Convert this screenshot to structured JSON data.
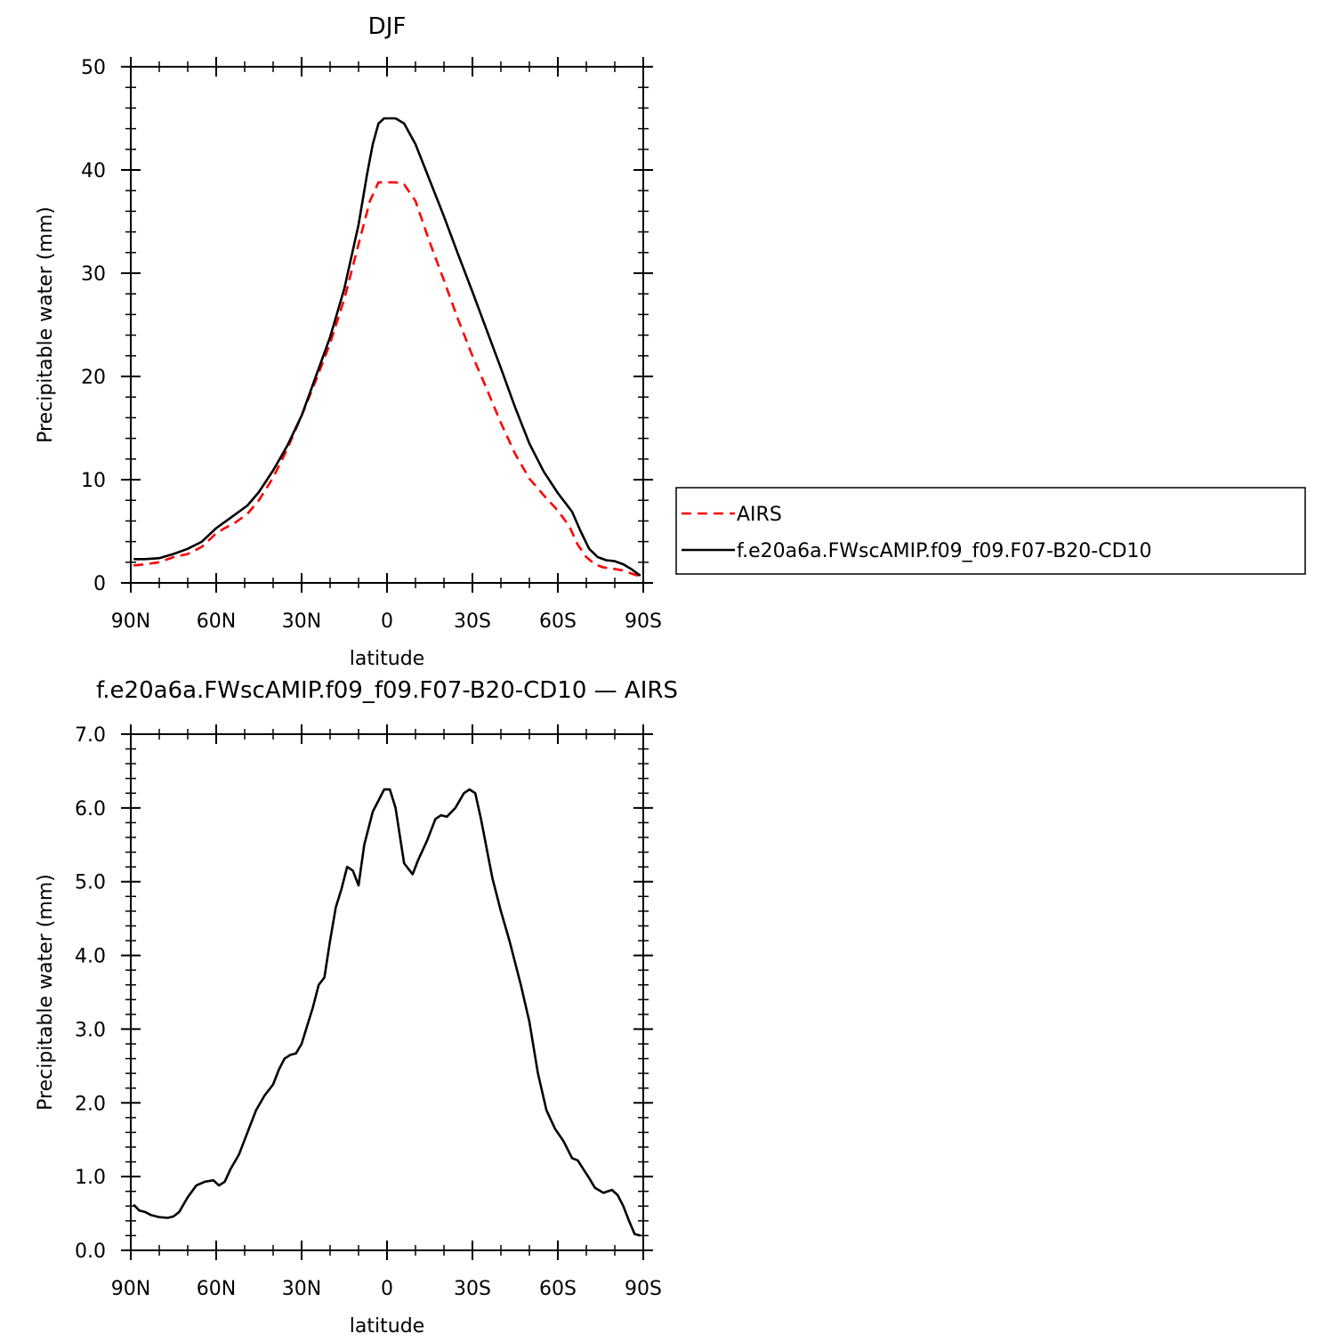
{
  "chart_data": [
    {
      "type": "line",
      "title": "DJF",
      "xlabel": "latitude",
      "ylabel": "Precipitable water (mm)",
      "xlim": [
        90,
        -90
      ],
      "ylim": [
        0,
        50
      ],
      "x_ticks": [
        90,
        60,
        30,
        0,
        -30,
        -60,
        -90
      ],
      "x_tick_labels": [
        "90N",
        "60N",
        "30N",
        "0",
        "30S",
        "60S",
        "90S"
      ],
      "y_ticks": [
        0,
        10,
        20,
        30,
        40,
        50
      ],
      "y_tick_labels": [
        "0",
        "10",
        "20",
        "30",
        "40",
        "50"
      ],
      "legend_position": "right",
      "series": [
        {
          "name": "AIRS",
          "color": "#ff0000",
          "dash": "dashed",
          "x": [
            89,
            85,
            80,
            75,
            70,
            65,
            60,
            57,
            53,
            49,
            45,
            40,
            35,
            30,
            25,
            20,
            15,
            10,
            6,
            3,
            1,
            -1,
            -3,
            -6,
            -10,
            -15,
            -20,
            -25,
            -30,
            -35,
            -40,
            -45,
            -50,
            -55,
            -60,
            -64,
            -67,
            -70,
            -73,
            -76,
            -79,
            -83,
            -86,
            -89
          ],
          "y": [
            1.7,
            1.8,
            2.0,
            2.5,
            2.8,
            3.5,
            4.8,
            5.3,
            5.9,
            6.7,
            8.0,
            10.2,
            13.0,
            16.2,
            19.6,
            23.2,
            27.5,
            32.8,
            37.0,
            38.8,
            38.8,
            38.8,
            38.8,
            38.6,
            37.0,
            33.0,
            29.3,
            25.5,
            22.0,
            18.8,
            15.5,
            12.5,
            10.1,
            8.5,
            7.0,
            5.5,
            3.7,
            2.5,
            1.8,
            1.5,
            1.4,
            1.2,
            0.9,
            0.6
          ]
        },
        {
          "name": "f.e20a6a.FWscAMIP.f09_f09.F07-B20-CD10",
          "color": "#000000",
          "dash": "solid",
          "x": [
            89,
            85,
            80,
            75,
            70,
            65,
            60,
            57,
            53,
            49,
            45,
            40,
            35,
            30,
            25,
            20,
            15,
            10,
            7,
            5,
            3,
            1,
            -1,
            -3,
            -6,
            -10,
            -15,
            -20,
            -25,
            -30,
            -35,
            -40,
            -45,
            -50,
            -55,
            -60,
            -65,
            -68,
            -71,
            -74,
            -77,
            -80,
            -83,
            -86,
            -89
          ],
          "y": [
            2.3,
            2.3,
            2.4,
            2.8,
            3.3,
            4.0,
            5.3,
            5.9,
            6.7,
            7.5,
            8.8,
            10.9,
            13.3,
            16.2,
            20.0,
            23.8,
            28.5,
            34.7,
            39.6,
            42.5,
            44.5,
            45.0,
            45.0,
            45.0,
            44.5,
            42.5,
            39.0,
            35.5,
            31.8,
            28.2,
            24.5,
            20.8,
            17.0,
            13.5,
            10.8,
            8.7,
            6.9,
            5.0,
            3.3,
            2.5,
            2.2,
            2.1,
            1.8,
            1.3,
            0.7
          ]
        }
      ]
    },
    {
      "type": "line",
      "title": "f.e20a6a.FWscAMIP.f09_f09.F07-B20-CD10 — AIRS",
      "xlabel": "latitude",
      "ylabel": "Precipitable water (mm)",
      "xlim": [
        90,
        -90
      ],
      "ylim": [
        0,
        7
      ],
      "x_ticks": [
        90,
        60,
        30,
        0,
        -30,
        -60,
        -90
      ],
      "x_tick_labels": [
        "90N",
        "60N",
        "30N",
        "0",
        "30S",
        "60S",
        "90S"
      ],
      "y_ticks": [
        0,
        1,
        2,
        3,
        4,
        5,
        6,
        7
      ],
      "y_tick_labels": [
        "0.0",
        "1.0",
        "2.0",
        "3.0",
        "4.0",
        "5.0",
        "6.0",
        "7.0"
      ],
      "series": [
        {
          "color": "#000000",
          "dash": "solid",
          "x": [
            89,
            87,
            85,
            83,
            80,
            77,
            75,
            73,
            70,
            67,
            64,
            61,
            59,
            57,
            55,
            52,
            49,
            46,
            43,
            40,
            38,
            36,
            34,
            32,
            30,
            28,
            26,
            24,
            22,
            20,
            18,
            16,
            14,
            12,
            10,
            8,
            5,
            3,
            1,
            -1,
            -3,
            -6,
            -9,
            -11,
            -14,
            -17,
            -19,
            -21,
            -24,
            -27,
            -29,
            -31,
            -33,
            -37,
            -40,
            -43,
            -47,
            -50,
            -53,
            -56,
            -59,
            -62,
            -65,
            -67,
            -69,
            -71,
            -73,
            -76,
            -79,
            -81,
            -83,
            -85,
            -87,
            -89
          ],
          "y": [
            0.62,
            0.54,
            0.52,
            0.48,
            0.45,
            0.44,
            0.46,
            0.52,
            0.72,
            0.88,
            0.93,
            0.95,
            0.88,
            0.93,
            1.1,
            1.3,
            1.6,
            1.9,
            2.1,
            2.25,
            2.45,
            2.6,
            2.65,
            2.67,
            2.8,
            3.05,
            3.3,
            3.6,
            3.7,
            4.2,
            4.65,
            4.9,
            5.2,
            5.15,
            4.95,
            5.5,
            5.95,
            6.1,
            6.25,
            6.25,
            6.0,
            5.25,
            5.1,
            5.3,
            5.55,
            5.85,
            5.9,
            5.88,
            6.0,
            6.2,
            6.25,
            6.2,
            5.85,
            5.05,
            4.6,
            4.2,
            3.6,
            3.1,
            2.4,
            1.9,
            1.65,
            1.48,
            1.25,
            1.22,
            1.1,
            0.98,
            0.85,
            0.78,
            0.82,
            0.75,
            0.6,
            0.4,
            0.22,
            0.2
          ]
        }
      ]
    }
  ]
}
